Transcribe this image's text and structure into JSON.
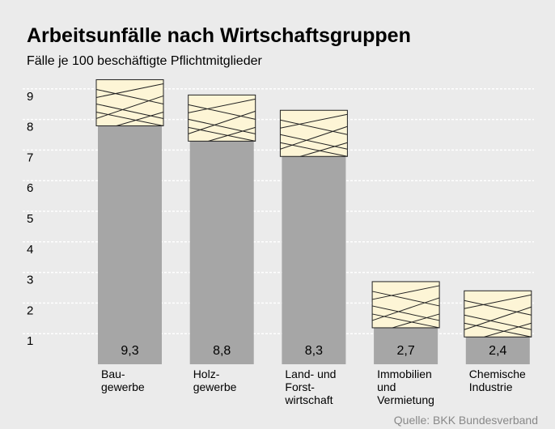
{
  "chart_data": {
    "type": "bar",
    "title": "Arbeitsunfälle nach Wirtschaftsgruppen",
    "subtitle": "Fälle je 100 beschäftigte Pflichtmitglieder",
    "categories": [
      "Bau-\ngewerbe",
      "Holz-\ngewerbe",
      "Land- und\nForst-\nwirtschaft",
      "Immobilien\nund\nVermietung",
      "Chemische\nIndustrie"
    ],
    "values": [
      9.3,
      8.8,
      8.3,
      2.7,
      2.4
    ],
    "value_labels": [
      "9,3",
      "8,8",
      "8,3",
      "2,7",
      "2,4"
    ],
    "color": "#a6a6a6",
    "ylim": [
      0,
      10
    ],
    "yticks": [
      1,
      2,
      3,
      4,
      5,
      6,
      7,
      8,
      9
    ],
    "grid": true,
    "source": "Quelle: BKK Bundesverband"
  }
}
